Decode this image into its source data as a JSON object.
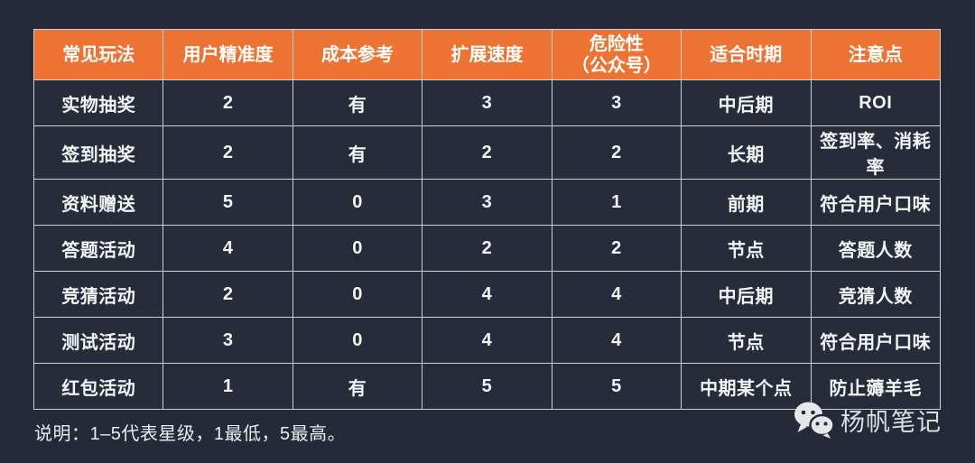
{
  "page": {
    "background_color": "#242A37",
    "accent_color": "#EC7333",
    "border_color": "#CCD0D6",
    "header_text_color": "#FFFFFF",
    "body_text_color": "#F3F5F7"
  },
  "chart_data": {
    "type": "table",
    "columns": [
      "常见玩法",
      "用户精准度",
      "成本参考",
      "扩展速度",
      "危险性\n（公众号）",
      "适合时期",
      "注意点"
    ],
    "rows": [
      [
        "实物抽奖",
        "2",
        "有",
        "3",
        "3",
        "中后期",
        "ROI"
      ],
      [
        "签到抽奖",
        "2",
        "有",
        "2",
        "2",
        "长期",
        "签到率、消耗率"
      ],
      [
        "资料赠送",
        "5",
        "0",
        "3",
        "1",
        "前期",
        "符合用户口味"
      ],
      [
        "答题活动",
        "4",
        "0",
        "2",
        "2",
        "节点",
        "答题人数"
      ],
      [
        "竞猜活动",
        "2",
        "0",
        "4",
        "4",
        "中后期",
        "竞猜人数"
      ],
      [
        "测试活动",
        "3",
        "0",
        "4",
        "4",
        "节点",
        "符合用户口味"
      ],
      [
        "红包活动",
        "1",
        "有",
        "5",
        "5",
        "中期某个点",
        "防止薅羊毛"
      ]
    ],
    "layout": {
      "header_background": "#EC7333",
      "grid": "on",
      "rating_scale": "1-5"
    }
  },
  "footer": {
    "note": "说明：1–5代表星级，1最低，5最高。",
    "brand_name": "杨帆笔记",
    "brand_icon": "wechat-icon",
    "brand_icon_color": "#E6E7E9"
  }
}
